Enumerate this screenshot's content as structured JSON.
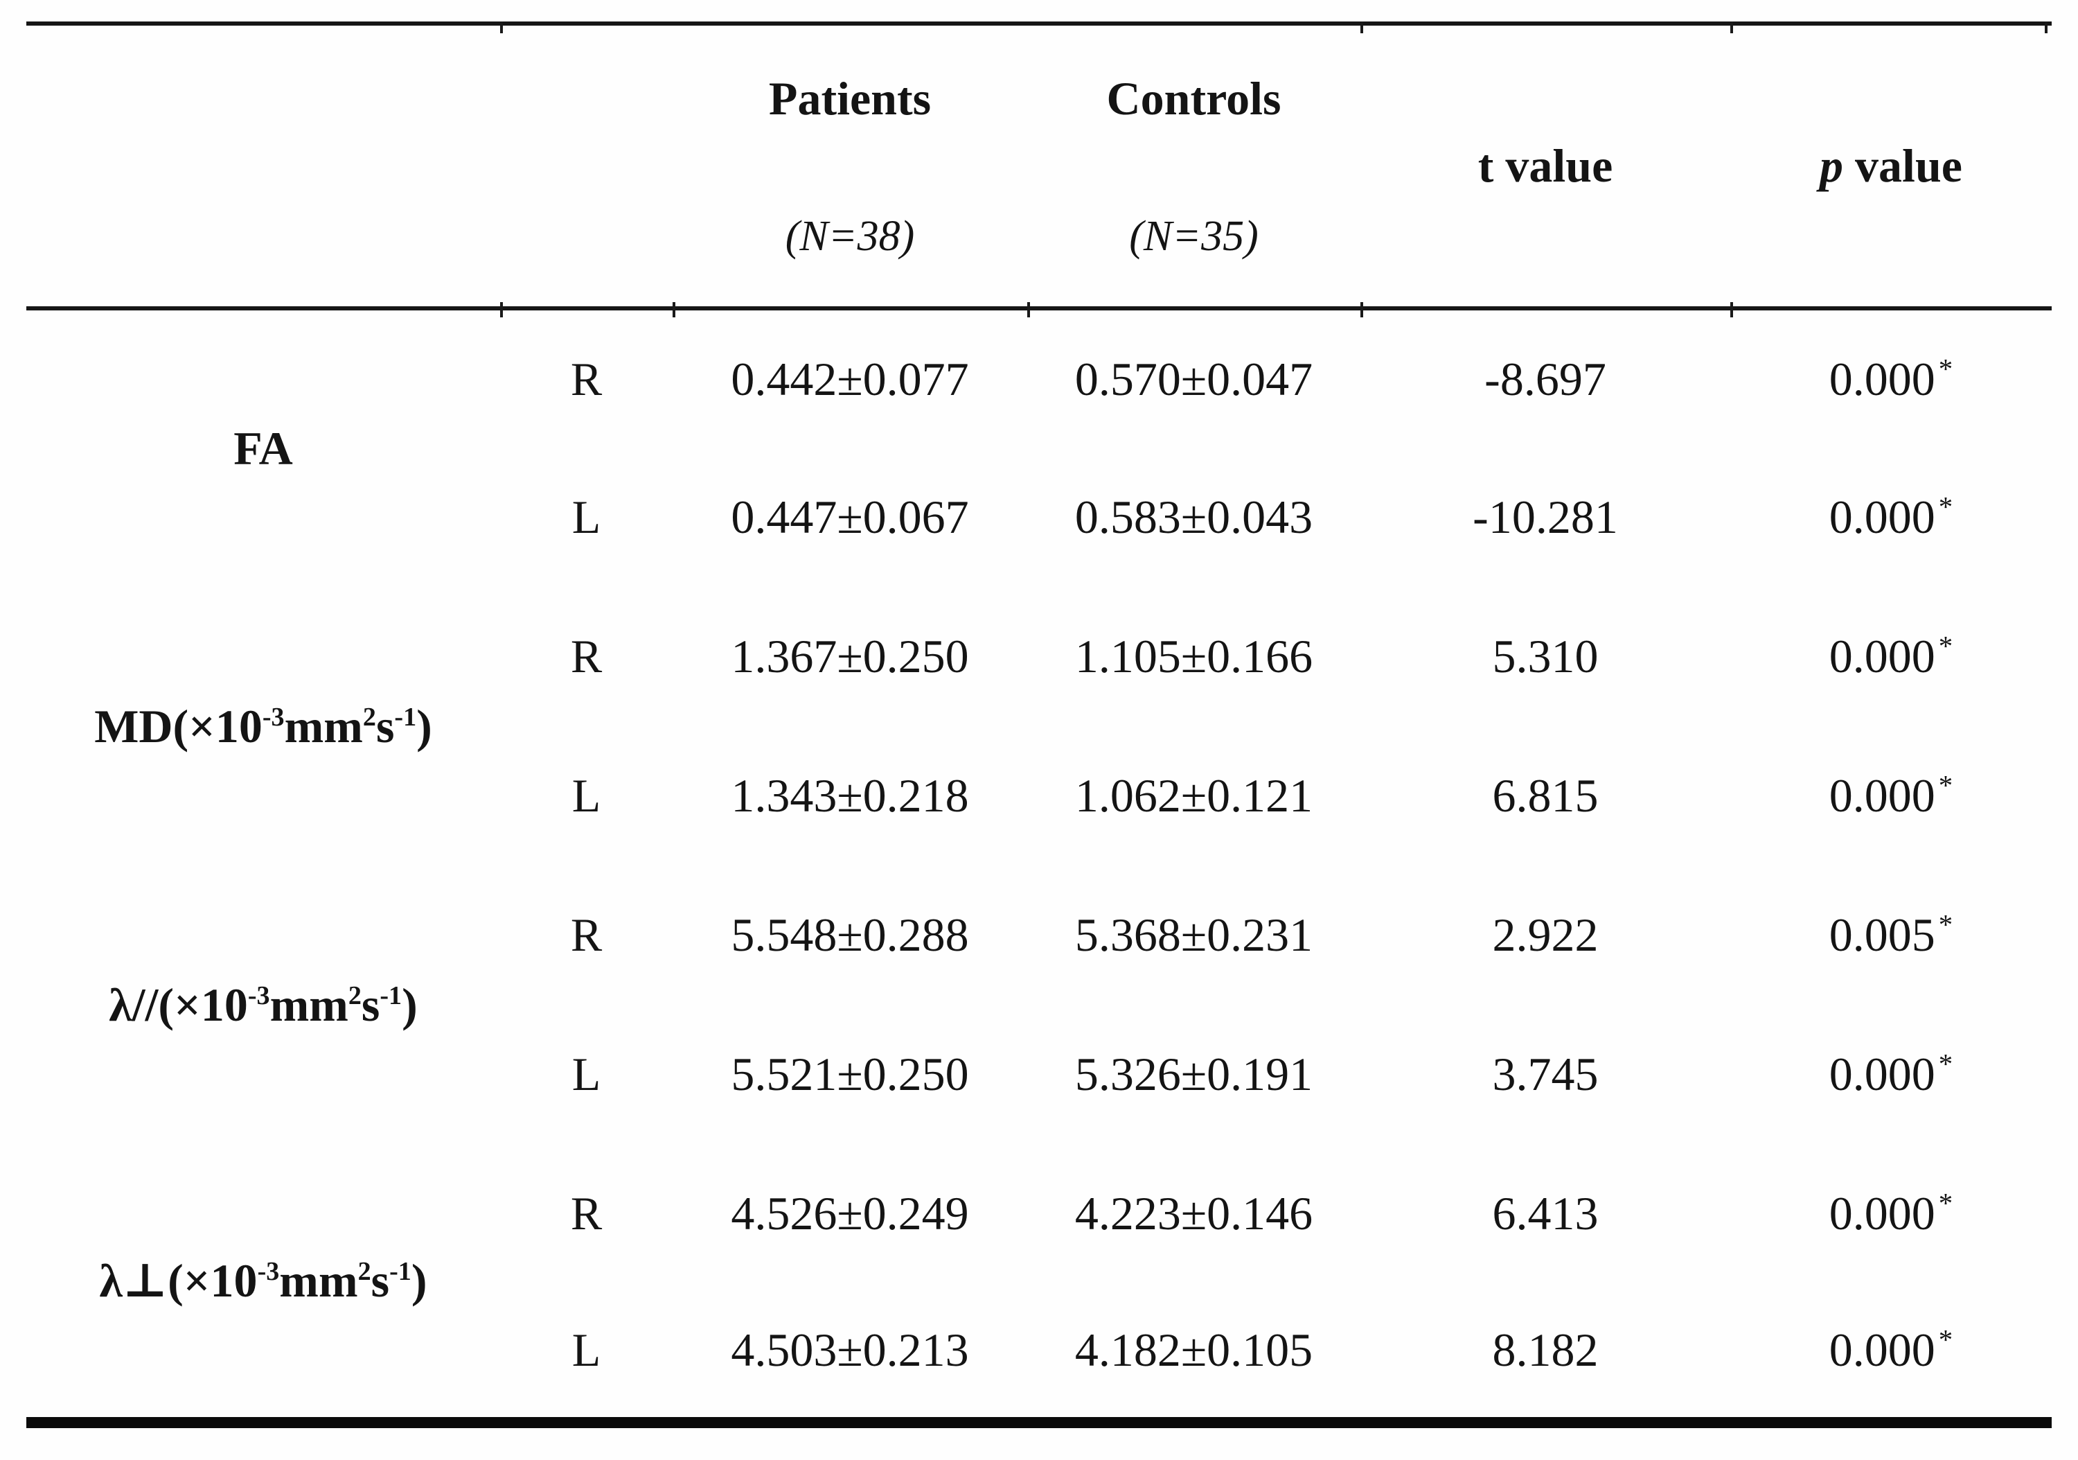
{
  "table": {
    "header": {
      "patients": {
        "title": "Patients",
        "n": "(N=38)"
      },
      "controls": {
        "title": "Controls",
        "n": "(N=35)"
      },
      "t_label": "t value",
      "p_italic": "p",
      "p_rest": " value"
    },
    "groups": [
      {
        "metric_parts": [
          {
            "t": "FA"
          }
        ],
        "rows": [
          {
            "side": "R",
            "patients": "0.442±0.077",
            "controls": "0.570±0.047",
            "t": "-8.697",
            "p": "0.000",
            "star": "*"
          },
          {
            "side": "L",
            "patients": "0.447±0.067",
            "controls": "0.583±0.043",
            "t": "-10.281",
            "p": "0.000",
            "star": "*"
          }
        ]
      },
      {
        "metric_parts": [
          {
            "t": "MD(×10"
          },
          {
            "t": "-3",
            "sup": true
          },
          {
            "t": "mm"
          },
          {
            "t": "2",
            "sup": true
          },
          {
            "t": "s"
          },
          {
            "t": "-1",
            "sup": true
          },
          {
            "t": ")"
          }
        ],
        "rows": [
          {
            "side": "R",
            "patients": "1.367±0.250",
            "controls": "1.105±0.166",
            "t": "5.310",
            "p": "0.000",
            "star": "*"
          },
          {
            "side": "L",
            "patients": "1.343±0.218",
            "controls": "1.062±0.121",
            "t": "6.815",
            "p": "0.000",
            "star": "*"
          }
        ]
      },
      {
        "metric_parts": [
          {
            "t": "λ//(×10"
          },
          {
            "t": "-3",
            "sup": true
          },
          {
            "t": "mm"
          },
          {
            "t": "2",
            "sup": true
          },
          {
            "t": "s"
          },
          {
            "t": "-1",
            "sup": true
          },
          {
            "t": ")"
          }
        ],
        "rows": [
          {
            "side": "R",
            "patients": "5.548±0.288",
            "controls": "5.368±0.231",
            "t": "2.922",
            "p": "0.005",
            "star": "*"
          },
          {
            "side": "L",
            "patients": "5.521±0.250",
            "controls": "5.326±0.191",
            "t": "3.745",
            "p": "0.000",
            "star": "*"
          }
        ]
      },
      {
        "metric_parts": [
          {
            "t": "λ⊥(×10"
          },
          {
            "t": "-3",
            "sup": true
          },
          {
            "t": "mm"
          },
          {
            "t": "2",
            "sup": true
          },
          {
            "t": "s"
          },
          {
            "t": "-1",
            "sup": true
          },
          {
            "t": ")"
          }
        ],
        "rows": [
          {
            "side": "R",
            "patients": "4.526±0.249",
            "controls": "4.223±0.146",
            "t": "6.413",
            "p": "0.000",
            "star": "*"
          },
          {
            "side": "L",
            "patients": "4.503±0.213",
            "controls": "4.182±0.105",
            "t": "8.182",
            "p": "0.000",
            "star": "*"
          }
        ]
      }
    ]
  }
}
